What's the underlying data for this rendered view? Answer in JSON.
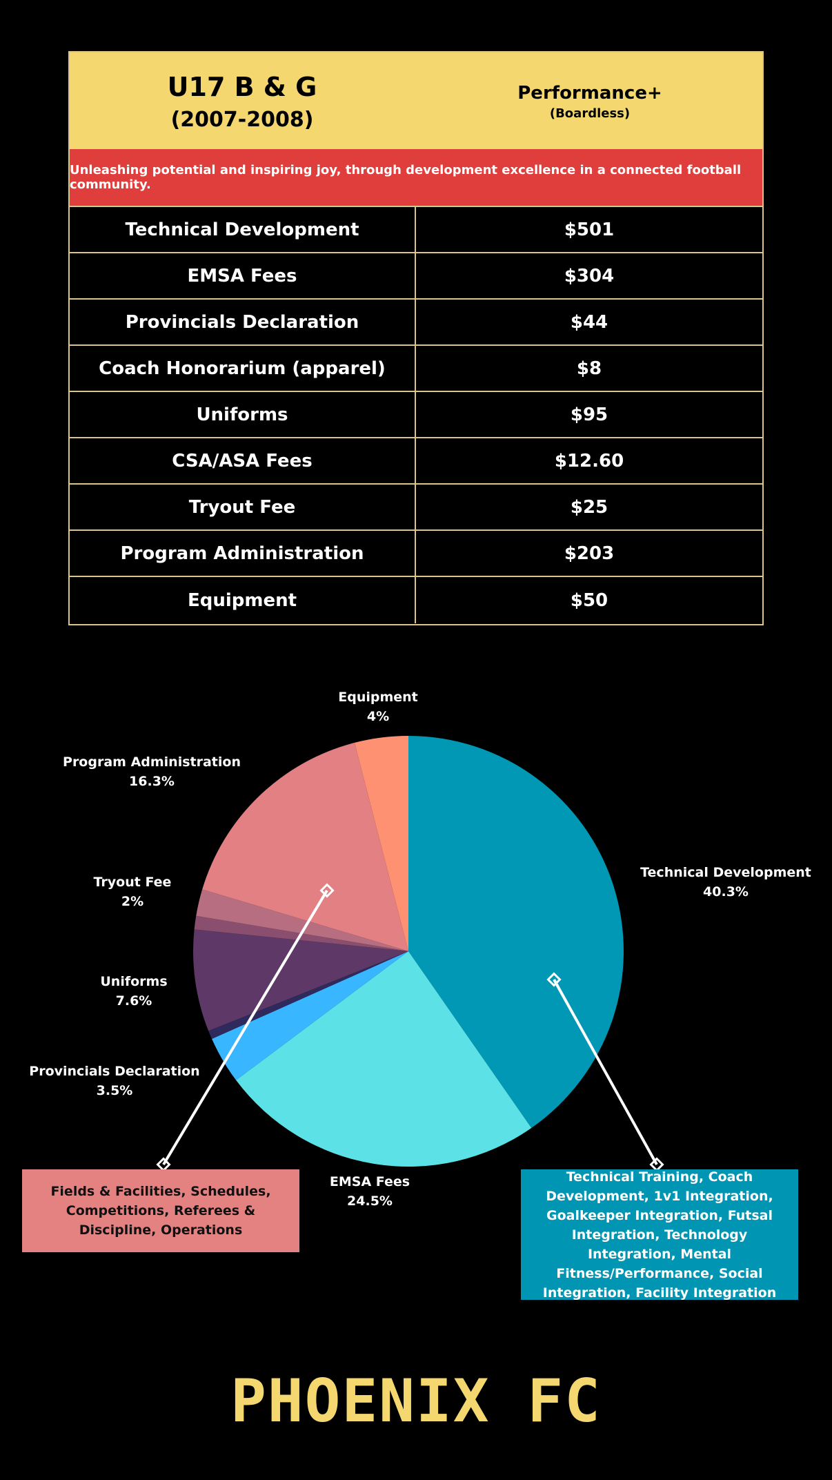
{
  "header": {
    "team": "U17 B & G",
    "years": "(2007-2008)",
    "program": "Performance+",
    "program_sub": "(Boardless)"
  },
  "mission": "Unleashing potential and inspiring joy, through development excellence in a connected football community.",
  "fees": [
    {
      "label": "Technical Development",
      "amount": "$501"
    },
    {
      "label": "EMSA Fees",
      "amount": "$304"
    },
    {
      "label": "Provincials Declaration",
      "amount": "$44"
    },
    {
      "label": "Coach Honorarium (apparel)",
      "amount": "$8"
    },
    {
      "label": "Uniforms",
      "amount": "$95"
    },
    {
      "label": "CSA/ASA Fees",
      "amount": "$12.60"
    },
    {
      "label": "Tryout Fee",
      "amount": "$25"
    },
    {
      "label": "Program Administration",
      "amount": "$203"
    },
    {
      "label": "Equipment",
      "amount": "$50"
    }
  ],
  "chart_data": {
    "type": "pie",
    "slices": [
      {
        "name": "Technical Development",
        "percent_label": "40.3%",
        "value": 501,
        "color": "#0098b4",
        "labeled": true
      },
      {
        "name": "EMSA Fees",
        "percent_label": "24.5%",
        "value": 304,
        "color": "#5ce1e6",
        "labeled": true
      },
      {
        "name": "Provincials Declaration",
        "percent_label": "3.5%",
        "value": 44,
        "color": "#38b6ff",
        "labeled": true
      },
      {
        "name": "Coach Honorarium (apparel)",
        "percent_label": "",
        "value": 8,
        "color": "#2e2a5e",
        "labeled": false
      },
      {
        "name": "Uniforms",
        "percent_label": "7.6%",
        "value": 95,
        "color": "#5e3866",
        "labeled": true
      },
      {
        "name": "CSA/ASA Fees",
        "percent_label": "",
        "value": 12.6,
        "color": "#8a4e6e",
        "labeled": false
      },
      {
        "name": "Tryout Fee",
        "percent_label": "2%",
        "value": 25,
        "color": "#b66e80",
        "labeled": true
      },
      {
        "name": "Program Administration",
        "percent_label": "16.3%",
        "value": 203,
        "color": "#e28084",
        "labeled": true
      },
      {
        "name": "Equipment",
        "percent_label": "4%",
        "value": 50,
        "color": "#ff9173",
        "labeled": true
      }
    ]
  },
  "callouts": {
    "admin": "Fields & Facilities, Schedules, Competitions, Referees & Discipline, Operations",
    "tech": "Technical Training, Coach Development, 1v1 Integration, Goalkeeper Integration, Futsal Integration, Technology Integration, Mental Fitness/Performance, Social Integration, Facility Integration"
  },
  "brand": "PHOENIX FC"
}
